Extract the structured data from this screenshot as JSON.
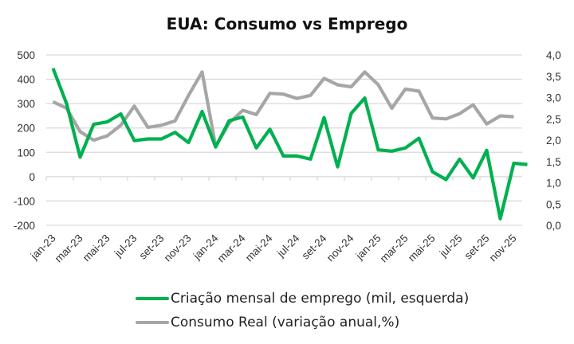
{
  "chart_data": {
    "type": "line",
    "title": "EUA: Consumo vs Emprego",
    "x": [
      "jan-23",
      "fev-23",
      "mar-23",
      "abr-23",
      "mai-23",
      "jun-23",
      "jul-23",
      "ago-23",
      "set-23",
      "out-23",
      "nov-23",
      "dez-23",
      "jan-24",
      "fev-24",
      "mar-24",
      "abr-24",
      "mai-24",
      "jun-24",
      "jul-24",
      "ago-24",
      "set-24",
      "out-24",
      "nov-24",
      "dez-24",
      "jan-25",
      "fev-25",
      "mar-25",
      "abr-25",
      "mai-25",
      "jun-25",
      "jul-25",
      "ago-25",
      "set-25",
      "out-25",
      "nov-25",
      "dez-25"
    ],
    "x_tick_labels": [
      "jan-23",
      "mar-23",
      "mai-23",
      "jul-23",
      "set-23",
      "nov-23",
      "jan-24",
      "mar-24",
      "mai-24",
      "jul-24",
      "set-24",
      "nov-24",
      "jan-25",
      "mar-25",
      "mai-25",
      "jul-25",
      "set-25",
      "nov-25"
    ],
    "series": [
      {
        "name": "Criação mensal de emprego (mil, esquerda)",
        "axis": "left",
        "color": "#00b050",
        "values": [
          445,
          300,
          80,
          215,
          225,
          258,
          148,
          155,
          155,
          182,
          140,
          268,
          122,
          230,
          245,
          118,
          195,
          85,
          85,
          72,
          243,
          40,
          260,
          323,
          110,
          105,
          118,
          158,
          20,
          -12,
          72,
          -5,
          108,
          -173,
          55,
          50
        ]
      },
      {
        "name": "Consumo Real (variação anual,%)",
        "axis": "right",
        "color": "#a6a6a6",
        "values": [
          2.9,
          2.75,
          2.2,
          2.0,
          2.1,
          2.35,
          2.8,
          2.3,
          2.35,
          2.45,
          3.05,
          3.6,
          1.85,
          2.4,
          2.7,
          2.6,
          3.1,
          3.08,
          2.98,
          3.05,
          3.45,
          3.3,
          3.25,
          3.6,
          3.3,
          2.75,
          3.2,
          3.15,
          2.52,
          2.5,
          2.62,
          2.83,
          2.38,
          2.57,
          2.55,
          null
        ]
      }
    ],
    "yleft": {
      "ylim": [
        -200,
        500
      ],
      "ticks": [
        500,
        400,
        300,
        200,
        100,
        0,
        -100,
        -200
      ],
      "tick_labels": [
        "500",
        "400",
        "300",
        "200",
        "100",
        "0",
        "-100",
        "-200"
      ]
    },
    "yright": {
      "ylim": [
        0.0,
        4.0
      ],
      "ticks": [
        4.0,
        3.5,
        3.0,
        2.5,
        2.0,
        1.5,
        1.0,
        0.5,
        0.0
      ],
      "tick_labels": [
        "4,0",
        "3,5",
        "3,0",
        "2,5",
        "2,0",
        "1,5",
        "1,0",
        "0,5",
        "0,0"
      ]
    },
    "xlabel": "",
    "ylabel": "",
    "grid": true,
    "legend_position": "bottom"
  },
  "colors": {
    "gridline": "#d9d9d9",
    "green": "#00b050",
    "gray": "#a6a6a6"
  }
}
